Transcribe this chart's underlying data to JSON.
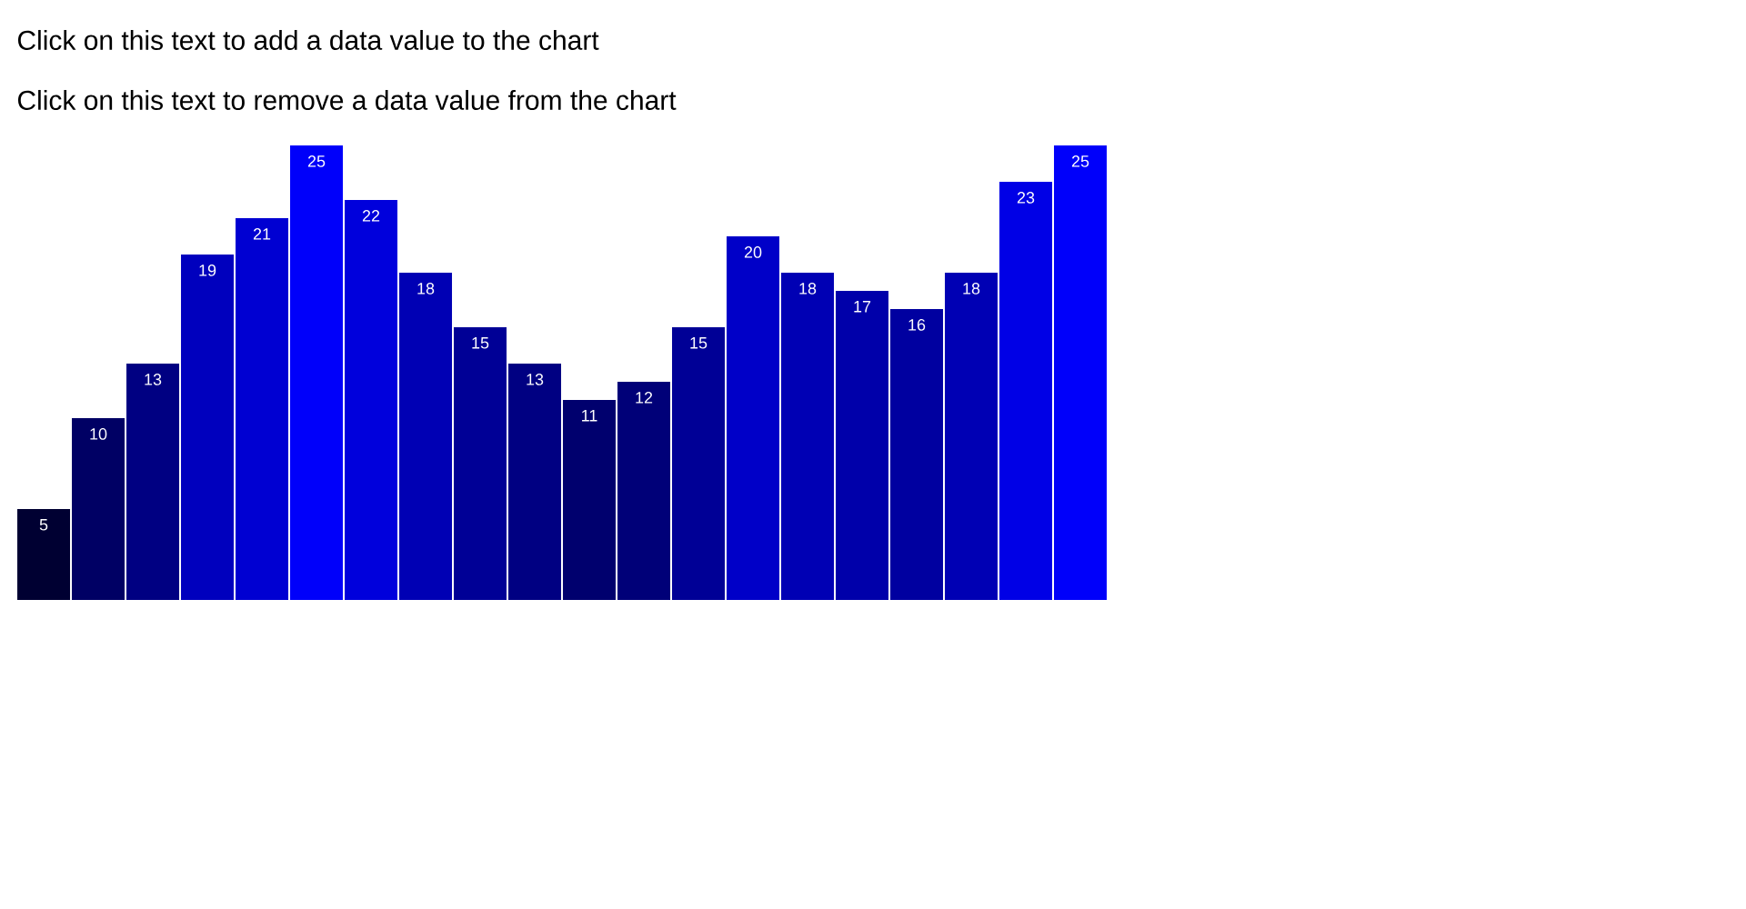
{
  "chart_data": {
    "type": "bar",
    "categories": [
      null,
      null,
      null,
      null,
      null,
      null,
      null,
      null,
      null,
      null,
      null,
      null,
      null,
      null,
      null,
      null,
      null,
      null,
      null,
      null
    ],
    "values": [
      5,
      10,
      13,
      19,
      21,
      25,
      22,
      18,
      15,
      13,
      11,
      12,
      15,
      20,
      18,
      17,
      16,
      18,
      23,
      25
    ],
    "colors": [
      "#000032",
      "#000064",
      "#000082",
      "#0000be",
      "#0000d2",
      "#0000fa",
      "#0000dc",
      "#0000b4",
      "#000096",
      "#000082",
      "#00006e",
      "#000078",
      "#000096",
      "#0000c8",
      "#0000b4",
      "#0000aa",
      "#0000a0",
      "#0000b4",
      "#0000e6",
      "#0000fa"
    ],
    "data_labels": true,
    "annotations": [
      "Click on this text to add a data value to the chart",
      "Click on this text to remove a data value from the chart"
    ]
  }
}
